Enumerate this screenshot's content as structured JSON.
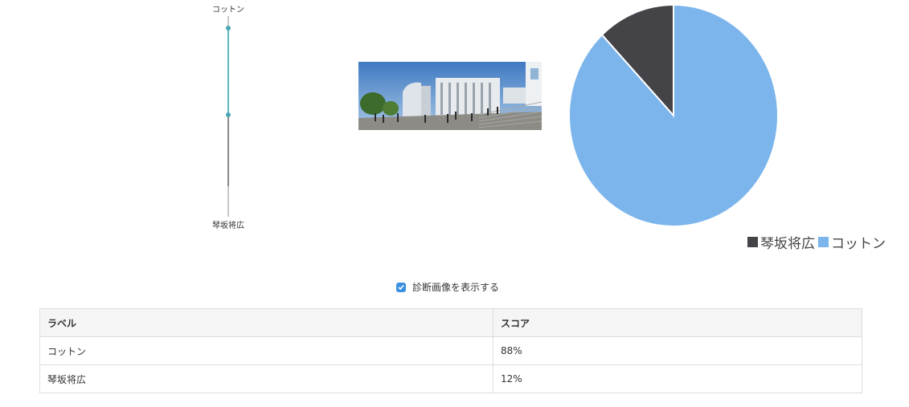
{
  "scale": {
    "top_label": "コットン",
    "bottom_label": "琴坂将広",
    "top_value": 88,
    "bottom_value": 12
  },
  "photo": {
    "icon": "campus-photo"
  },
  "chart_data": {
    "type": "pie",
    "labels": [
      "琴坂将広",
      "コットン"
    ],
    "values": [
      12,
      88
    ],
    "colors": [
      "#434348",
      "#7cb5ec"
    ],
    "legend_position": "bottom-right"
  },
  "legend": {
    "items": [
      {
        "label": "琴坂将広",
        "color": "#434348"
      },
      {
        "label": "コットン",
        "color": "#7cb5ec"
      }
    ]
  },
  "options": {
    "show_diagnostic_label": "診断画像を表示する",
    "show_diagnostic_checked": true
  },
  "table": {
    "headers": {
      "label": "ラベル",
      "score": "スコア"
    },
    "rows": [
      {
        "label": "コットン",
        "score": "88%"
      },
      {
        "label": "琴坂将広",
        "score": "12%"
      }
    ]
  }
}
